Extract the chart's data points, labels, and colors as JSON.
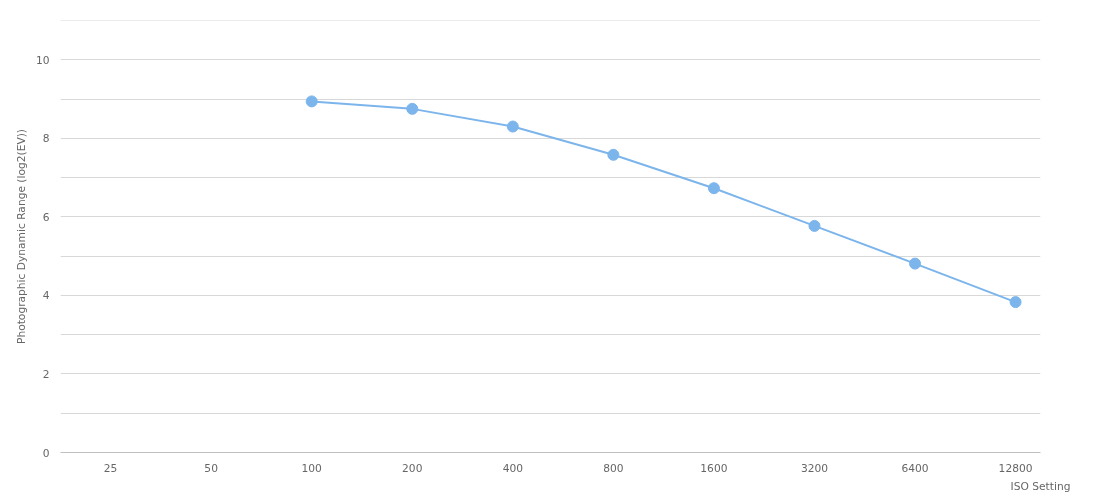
{
  "chart_data": {
    "type": "line",
    "xlabel": "ISO Setting",
    "ylabel": "Photographic Dynamic Range (log2(EV))",
    "log": "x",
    "x": [
      100,
      200,
      400,
      800,
      1600,
      3200,
      6400,
      12800
    ],
    "series": [
      {
        "color": "#7cb5ec",
        "values": [
          8.94,
          8.75,
          8.3,
          7.58,
          6.73,
          5.77,
          4.81,
          3.83
        ]
      }
    ],
    "xlim": [
      17.7,
      15200
    ],
    "xticks": [
      25,
      50,
      100,
      200,
      400,
      800,
      1600,
      3200,
      6400,
      12800
    ],
    "ylim": [
      0,
      11
    ],
    "yticks": [
      0,
      {
        "value": 1,
        "label": null
      },
      2,
      {
        "value": 3,
        "label": null
      },
      4,
      {
        "value": 5,
        "label": null
      },
      6,
      {
        "value": 7,
        "label": null
      },
      8,
      {
        "value": 9,
        "label": null
      },
      10,
      {
        "value": 11,
        "label": null
      }
    ],
    "grid": "y",
    "marker": "circle",
    "line_style": "solid"
  }
}
